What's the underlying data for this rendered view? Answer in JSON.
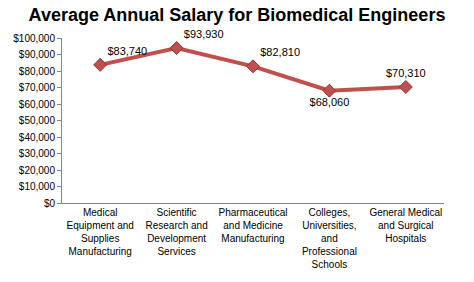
{
  "chart_data": {
    "type": "line",
    "title": "Average Annual Salary for Biomedical Engineers",
    "categories": [
      "Medical Equipment and Supplies Manufacturing",
      "Scientific Research and Development Services",
      "Pharmaceutical and Medicine Manufacturing",
      "Colleges, Universities, and Professional Schools",
      "General Medical and Surgical Hospitals"
    ],
    "values": [
      83740,
      93930,
      82810,
      68060,
      70310
    ],
    "value_labels": [
      "$83,740",
      "$93,930",
      "$82,810",
      "$68,060",
      "$70,310"
    ],
    "data_labels": true,
    "color": "#c0504d",
    "marker": "diamond",
    "ylim": [
      0,
      100000
    ],
    "yticks": [
      {
        "value": 0,
        "label": "$0"
      },
      {
        "value": 10000,
        "label": "$10,000"
      },
      {
        "value": 20000,
        "label": "$20,000"
      },
      {
        "value": 30000,
        "label": "$30,000"
      },
      {
        "value": 40000,
        "label": "$40,000"
      },
      {
        "value": 50000,
        "label": "$50,000"
      },
      {
        "value": 60000,
        "label": "$60,000"
      },
      {
        "value": 70000,
        "label": "$70,000"
      },
      {
        "value": 80000,
        "label": "$80,000"
      },
      {
        "value": 90000,
        "label": "$90,000"
      },
      {
        "value": 100000,
        "label": "$100,000"
      }
    ],
    "grid": false
  }
}
